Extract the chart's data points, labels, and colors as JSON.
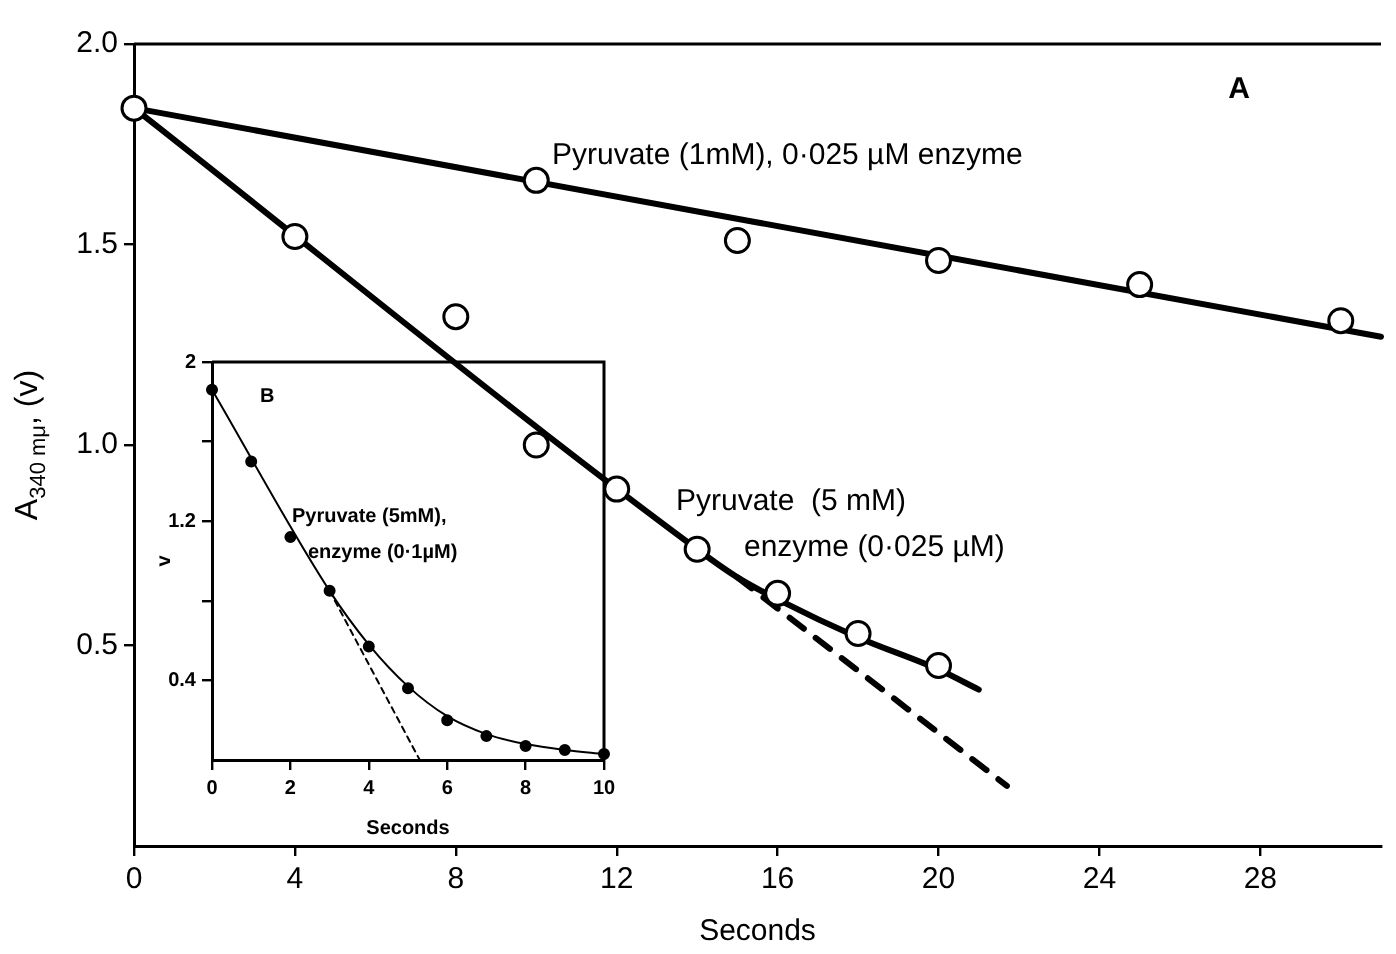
{
  "chart_data": [
    {
      "type": "scatter",
      "xlabel": "Seconds",
      "ylabel": "A$_{340 mμ}$, (v)",
      "xlim": [
        0,
        31
      ],
      "ylim": [
        0,
        2
      ],
      "xticks": [
        0,
        4,
        8,
        12,
        16,
        20,
        24,
        28
      ],
      "yticks": [
        0.5,
        {
          "value": 1,
          "label": "1.0"
        },
        1.5,
        {
          "value": 2,
          "label": "2.0"
        }
      ],
      "grid": false,
      "legend": false,
      "series": [
        {
          "marker": "circle",
          "color": "#000000",
          "x": [
            0,
            10,
            15,
            20,
            25,
            30
          ],
          "values": [
            1.84,
            1.66,
            1.51,
            1.46,
            1.4,
            1.31
          ]
        },
        {
          "marker": "circle",
          "color": "#000000",
          "x": [
            4,
            8,
            10,
            12,
            14,
            16,
            18,
            20
          ],
          "values": [
            1.52,
            1.32,
            1.0,
            0.89,
            0.74,
            0.63,
            0.53,
            0.45
          ]
        },
        {
          "type": "line",
          "marker": "none",
          "line_style": "solid",
          "color": "#000000",
          "x": [
            0,
            31
          ],
          "values": [
            1.84,
            1.27
          ]
        },
        {
          "type": "line",
          "marker": "none",
          "line_style": "solid",
          "color": "#000000",
          "x": [
            0,
            14,
            15,
            16,
            18,
            20,
            21
          ],
          "values": [
            1.84,
            0.74,
            0.67,
            0.615,
            0.52,
            0.44,
            0.39
          ]
        },
        {
          "type": "line",
          "marker": "none",
          "line_style": "dashed",
          "color": "#000000",
          "x": [
            15,
            21.7
          ],
          "values": [
            0.67,
            0.15
          ]
        }
      ],
      "annotations": [
        "A",
        "Pyruvate (1mM), 0·025 µM enzyme",
        "Pyruvate  (5 mM)",
        "enzyme (0·025 µM)"
      ]
    },
    {
      "type": "scatter",
      "xlabel": "Seconds",
      "ylabel": "v",
      "xlim": [
        0,
        10
      ],
      "ylim": [
        0,
        2
      ],
      "xticks": [
        0,
        2,
        4,
        6,
        8,
        10
      ],
      "yticks": [
        0.4,
        {
          "value": 0.8,
          "label": null
        },
        1.2,
        {
          "value": 1.6,
          "label": null
        },
        2
      ],
      "grid": false,
      "legend": false,
      "series": [
        {
          "marker": "circle",
          "color": "#000000",
          "x": [
            0,
            1,
            2,
            3,
            4,
            5,
            6,
            7,
            8,
            9,
            10
          ],
          "values": [
            1.86,
            1.5,
            1.12,
            0.85,
            0.57,
            0.36,
            0.2,
            0.12,
            0.07,
            0.05,
            0.03
          ]
        },
        {
          "type": "line",
          "marker": "none",
          "line_style": "solid",
          "color": "#000000",
          "x": [
            0,
            3,
            4,
            5,
            6,
            7,
            8,
            9,
            10
          ],
          "values": [
            1.86,
            0.85,
            0.58,
            0.37,
            0.22,
            0.13,
            0.08,
            0.05,
            0.03
          ]
        },
        {
          "type": "line",
          "marker": "none",
          "line_style": "dashed",
          "color": "#000000",
          "x": [
            3,
            5.3
          ],
          "values": [
            0.85,
            0
          ]
        }
      ],
      "annotations": [
        "B",
        "Pyruvate (5mM),",
        "enzyme (0·1µM)"
      ]
    }
  ]
}
